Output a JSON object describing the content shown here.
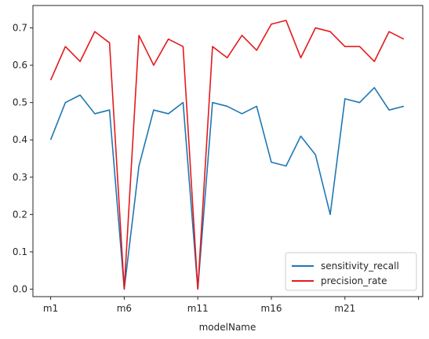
{
  "chart_data": {
    "type": "line",
    "x": [
      "m1",
      "m2",
      "m3",
      "m4",
      "m5",
      "m6",
      "m7",
      "m8",
      "m9",
      "m10",
      "m11",
      "m12",
      "m13",
      "m14",
      "m15",
      "m16",
      "m17",
      "m18",
      "m19",
      "m20",
      "m21",
      "m22",
      "m23",
      "m24",
      "m25",
      "m26"
    ],
    "xticks": [
      "m1",
      "m6",
      "m11",
      "m16",
      "m21",
      ""
    ],
    "xlabel": "modelName",
    "ylabel": "",
    "ylim": [
      -0.02,
      0.76
    ],
    "yticks": [
      "0.0",
      "0.1",
      "0.2",
      "0.3",
      "0.4",
      "0.5",
      "0.6",
      "0.7"
    ],
    "series": [
      {
        "name": "sensitivity_recall",
        "color": "#1f77b4",
        "values": [
          0.4,
          0.5,
          0.52,
          0.47,
          0.48,
          0.0,
          0.33,
          0.48,
          0.47,
          0.5,
          0.0,
          0.5,
          0.49,
          0.47,
          0.49,
          0.34,
          0.33,
          0.41,
          0.36,
          0.2,
          0.51,
          0.5,
          0.54,
          0.48,
          0.49,
          null
        ]
      },
      {
        "name": "precision_rate",
        "color": "#e41a1c",
        "values": [
          0.56,
          0.65,
          0.61,
          0.69,
          0.66,
          0.0,
          0.68,
          0.6,
          0.67,
          0.65,
          0.0,
          0.65,
          0.62,
          0.68,
          0.64,
          0.71,
          0.72,
          0.62,
          0.7,
          0.69,
          0.65,
          0.65,
          0.61,
          0.69,
          0.67,
          null
        ]
      }
    ],
    "legend": "lower-right",
    "grid": false
  }
}
